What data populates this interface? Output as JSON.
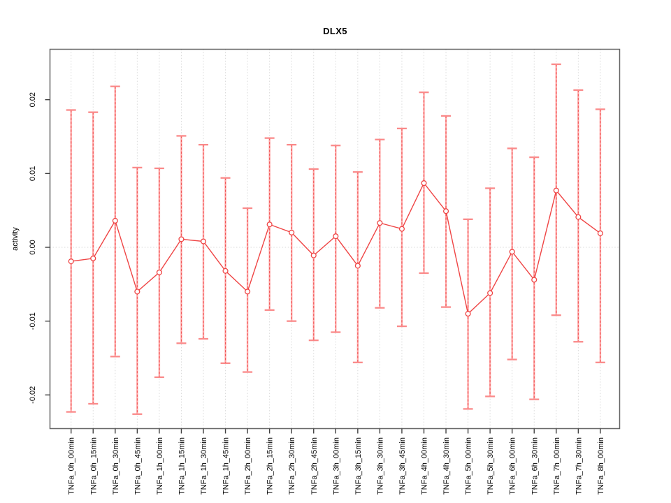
{
  "chart_data": {
    "type": "line",
    "title": "DLX5",
    "xlabel": "",
    "ylabel": "activity",
    "ylim": [
      -0.0246,
      0.0268
    ],
    "yticks": [
      0.02,
      0.01,
      0.0,
      -0.01,
      -0.02
    ],
    "ytick_labels": [
      "0.02",
      "0.01",
      "0.00",
      "-0.01",
      "-0.02"
    ],
    "grid": "dotted vertical gridline at every category; dotted horizontal line at y=0",
    "legend_position": "none",
    "marker": "open-circle",
    "error_bars": true,
    "categories": [
      "TNFa_0h_00min",
      "TNFa_0h_15min",
      "TNFa_0h_30min",
      "TNFa_0h_45min",
      "TNFa_1h_00min",
      "TNFa_1h_15min",
      "TNFa_1h_30min",
      "TNFa_1h_45min",
      "TNFa_2h_00min",
      "TNFa_2h_15min",
      "TNFa_2h_30min",
      "TNFa_2h_45min",
      "TNFa_3h_00min",
      "TNFa_3h_15min",
      "TNFa_3h_30min",
      "TNFa_3h_45min",
      "TNFa_4h_00min",
      "TNFa_4h_30min",
      "TNFa_5h_00min",
      "TNFa_5h_30min",
      "TNFa_6h_00min",
      "TNFa_6h_30min",
      "TNFa_7h_00min",
      "TNFa_7h_30min",
      "TNFa_8h_00min"
    ],
    "series": [
      {
        "name": "activity",
        "values": [
          -0.0019,
          -0.0015,
          0.0036,
          -0.006,
          -0.0034,
          0.0011,
          0.0008,
          -0.0032,
          -0.006,
          0.0031,
          0.002,
          -0.0011,
          0.0015,
          -0.0025,
          0.0033,
          0.0025,
          0.0087,
          0.0049,
          -0.009,
          -0.0062,
          -0.0006,
          -0.0044,
          0.0077,
          0.0041,
          0.0019
        ],
        "upper": [
          0.0186,
          0.0183,
          0.0218,
          0.0108,
          0.0107,
          0.0151,
          0.0139,
          0.0094,
          0.0053,
          0.0148,
          0.0139,
          0.0106,
          0.0138,
          0.0102,
          0.0146,
          0.0161,
          0.021,
          0.0178,
          0.0038,
          0.008,
          0.0134,
          0.0122,
          0.0248,
          0.0213,
          0.0187
        ],
        "lower": [
          -0.0223,
          -0.0212,
          -0.0148,
          -0.0226,
          -0.0176,
          -0.013,
          -0.0124,
          -0.0157,
          -0.0169,
          -0.0085,
          -0.01,
          -0.0126,
          -0.0115,
          -0.0156,
          -0.0082,
          -0.0107,
          -0.0035,
          -0.0081,
          -0.0219,
          -0.0202,
          -0.0152,
          -0.0206,
          -0.0092,
          -0.0128,
          -0.0156
        ]
      }
    ],
    "colors": {
      "errorbar_base": "#ffabab",
      "errorbar_dash": "#f05555",
      "errorbar_cap": "#fa8a8a",
      "series_line": "#ef4545",
      "marker_stroke": "#ef4545",
      "marker_fill": "#ffffff",
      "gridline": "#d9d9d9",
      "zero_line": "#d9d9d9",
      "box_border": "#666666",
      "tick": "#404040",
      "text": "#000000"
    }
  }
}
